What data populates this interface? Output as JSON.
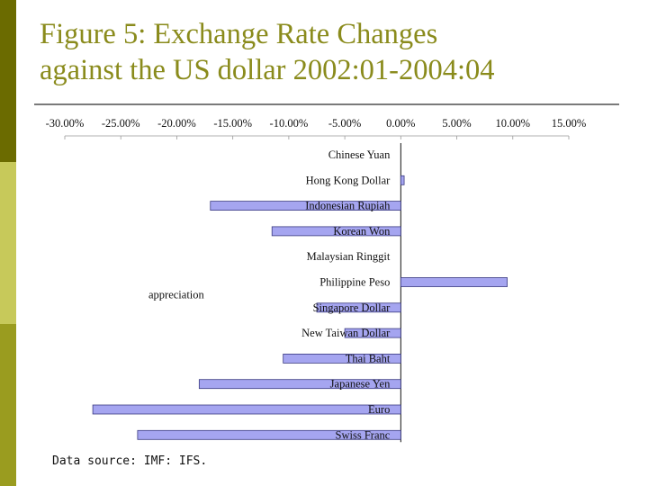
{
  "title_line1": "Figure 5: Exchange Rate Changes",
  "title_line2": "against the US dollar 2002:01-2004:04",
  "footnote": "Data source: IMF: IFS.",
  "colors": {
    "title": "#8a8b1c",
    "bar_fill": "#a5a5f0",
    "bar_stroke": "#3a3a80",
    "sidebar_dark": "#6b6b00",
    "sidebar_light": "#c7c95a",
    "sidebar_mid": "#9a9c1f"
  },
  "chart_data": {
    "type": "bar",
    "orientation": "horizontal",
    "categories": [
      "Chinese Yuan",
      "Hong Kong Dollar",
      "Indonesian Rupiah",
      "Korean Won",
      "Malaysian Ringgit",
      "Philippine Peso",
      "Singapore Dollar",
      "New Taiwan Dollar",
      "Thai Baht",
      "Japanese Yen",
      "Euro",
      "Swiss Franc"
    ],
    "values": [
      0.0,
      0.3,
      -17.0,
      -11.5,
      0.0,
      9.5,
      -7.5,
      -5.0,
      -10.5,
      -18.0,
      -27.5,
      -23.5
    ],
    "xlim": [
      -30,
      15
    ],
    "tick_values": [
      -30,
      -25,
      -20,
      -15,
      -10,
      -5,
      0,
      5,
      10,
      15
    ],
    "tick_labels": [
      "-30.00%",
      "-25.00%",
      "-20.00%",
      "-15.00%",
      "-10.00%",
      "-5.00%",
      "0.00%",
      "5.00%",
      "10.00%",
      "15.00%"
    ],
    "axis_position": "top",
    "annotations": [
      {
        "text": "appreciation",
        "near_category": "Philippine Peso"
      }
    ],
    "grid": false,
    "legend": "none"
  }
}
